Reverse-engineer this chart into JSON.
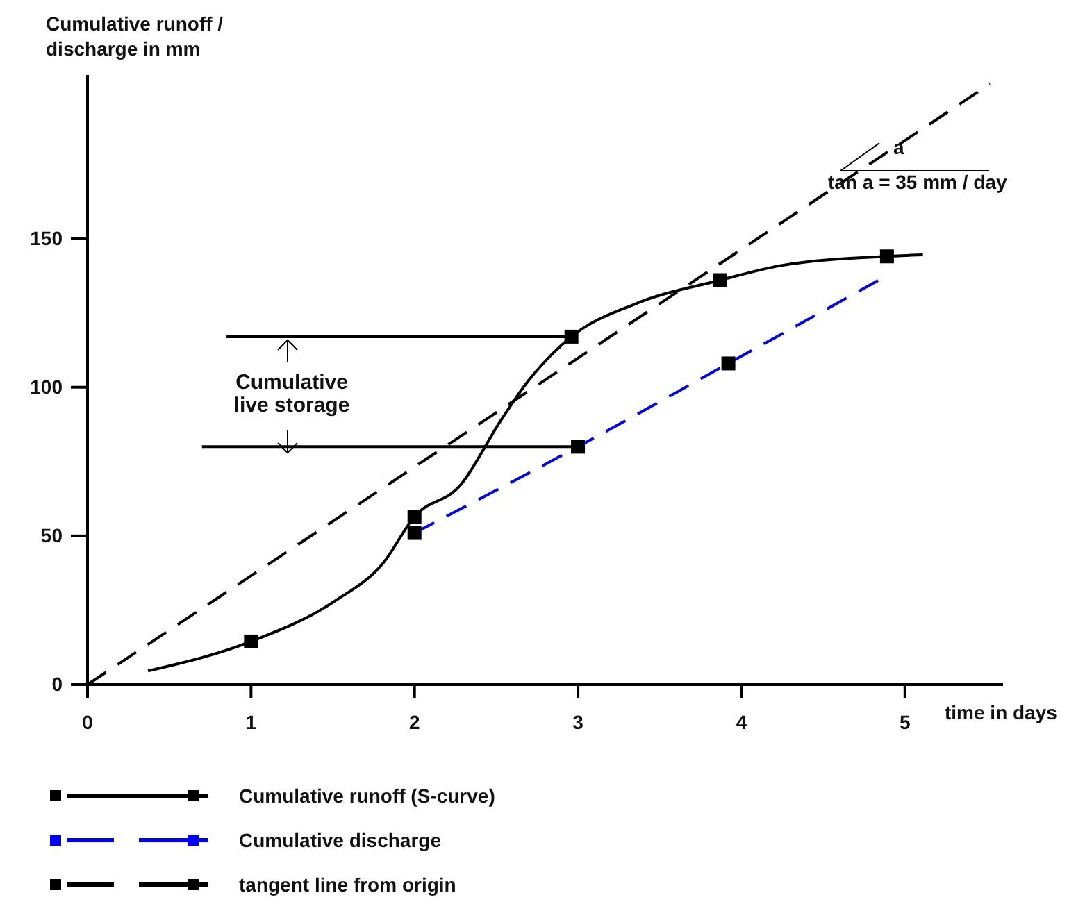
{
  "chart_data": {
    "type": "line",
    "ylabel": "Cumulative runoff / discharge in mm",
    "xlabel": "time in days",
    "xlim": [
      0,
      5.6
    ],
    "ylim": [
      0,
      205
    ],
    "xticks": [
      0,
      1,
      2,
      3,
      4,
      5
    ],
    "yticks": [
      0,
      50,
      100,
      150
    ],
    "legend": "bottom",
    "series": [
      {
        "name": "Cumulative runoff  (S-curve)",
        "color": "#000000",
        "line_style": "solid",
        "x": [
          0.37,
          1.0,
          1.51,
          1.81,
          2.0,
          2.28,
          2.53,
          2.68,
          2.96,
          3.35,
          3.87,
          4.25,
          4.89,
          5.11
        ],
        "values": [
          4.6,
          14.5,
          28,
          41,
          56.5,
          67,
          89,
          101,
          117,
          128,
          136,
          141,
          144,
          144.5
        ]
      },
      {
        "name": "Cumulative discharge",
        "color": "#0000ff",
        "line_style": "dashed",
        "x": [
          2.0,
          3.0,
          3.92,
          4.84
        ],
        "values": [
          51,
          80,
          108,
          136
        ]
      },
      {
        "name": "tangent line from origin",
        "color": "#000000",
        "line_style": "dashed",
        "x": [
          0,
          5.52
        ],
        "values": [
          0,
          202
        ]
      },
      {
        "type": "scatter",
        "color": "#000000",
        "marker": "square",
        "x": [
          1.0,
          2.0,
          2.96,
          3.87,
          4.89
        ],
        "values": [
          14.5,
          56.5,
          117,
          136,
          144
        ]
      },
      {
        "type": "scatter",
        "color": "#000000",
        "marker": "square",
        "x": [
          2.0,
          3.0,
          3.92
        ],
        "values": [
          51,
          80,
          108
        ]
      },
      {
        "color": "#000000",
        "line_style": "solid",
        "x": [
          0.85,
          2.96
        ],
        "values": [
          117,
          117
        ]
      },
      {
        "color": "#000000",
        "line_style": "solid",
        "x": [
          0.7,
          2.96
        ],
        "values": [
          80,
          80
        ]
      }
    ],
    "annotations": [
      "Cumulative live storage",
      "a",
      "tan a = 35 mm / day"
    ]
  }
}
